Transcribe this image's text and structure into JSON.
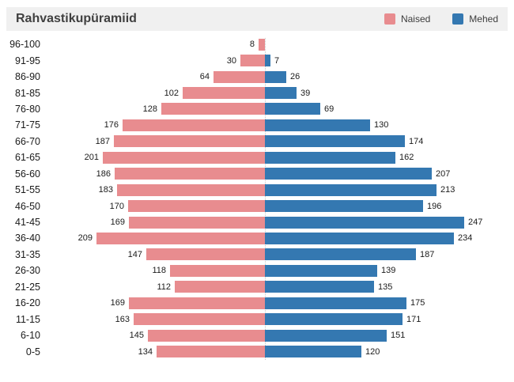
{
  "header": {
    "title": "Rahvastikupüramiid"
  },
  "chart_data": {
    "type": "bar",
    "subtype": "population-pyramid",
    "title": "Rahvastikupüramiid",
    "orientation": "horizontal",
    "value_labels": true,
    "grid": false,
    "legend_position": "top-right",
    "xlim_each_side": [
      0,
      250
    ],
    "categories": [
      "96-100",
      "91-95",
      "86-90",
      "81-85",
      "76-80",
      "71-75",
      "66-70",
      "61-65",
      "56-60",
      "51-55",
      "46-50",
      "41-45",
      "36-40",
      "31-35",
      "26-30",
      "21-25",
      "16-20",
      "11-15",
      "6-10",
      "0-5"
    ],
    "series": [
      {
        "name": "Naised",
        "side": "left",
        "color": "#e88c8f",
        "values": [
          8,
          30,
          64,
          102,
          128,
          176,
          187,
          201,
          186,
          183,
          170,
          169,
          209,
          147,
          118,
          112,
          169,
          163,
          145,
          134
        ]
      },
      {
        "name": "Mehed",
        "side": "right",
        "color": "#3478b1",
        "values": [
          0,
          7,
          26,
          39,
          69,
          130,
          174,
          162,
          207,
          213,
          196,
          247,
          234,
          187,
          139,
          135,
          175,
          171,
          151,
          120
        ]
      }
    ]
  }
}
